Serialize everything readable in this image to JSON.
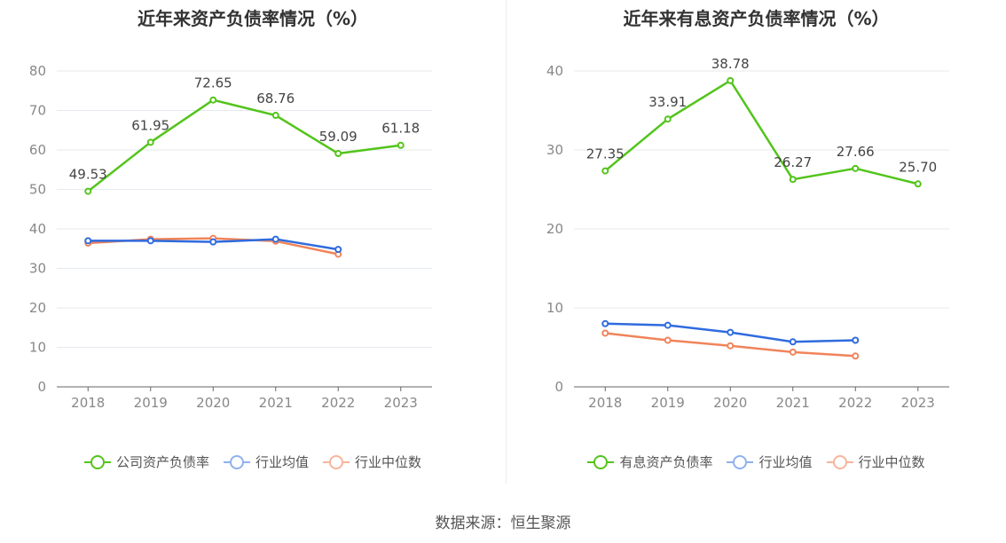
{
  "source": "数据来源：恒生聚源",
  "chart_data": [
    {
      "type": "line",
      "title": "近年来资产负债率情况（%）",
      "x": [
        "2018",
        "2019",
        "2020",
        "2021",
        "2022",
        "2023"
      ],
      "ylim": [
        0,
        80
      ],
      "yticks": [
        0,
        10,
        20,
        30,
        40,
        50,
        60,
        70,
        80
      ],
      "grid": true,
      "legend_position": "bottom",
      "series": [
        {
          "name": "公司资产负债率",
          "color": "#52c41a",
          "labeled": true,
          "values": [
            49.53,
            61.95,
            72.65,
            68.76,
            59.09,
            61.18
          ],
          "labels": [
            "49.53",
            "61.95",
            "72.65",
            "68.76",
            "59.09",
            "61.18"
          ]
        },
        {
          "name": "行业均值",
          "color": "#2f6bde",
          "labeled": false,
          "values": [
            37.0,
            37.0,
            36.7,
            37.4,
            34.8,
            null
          ]
        },
        {
          "name": "行业中位数",
          "color": "#f0845a",
          "labeled": false,
          "values": [
            36.4,
            37.4,
            37.6,
            36.9,
            33.6,
            null
          ]
        }
      ],
      "legend": [
        {
          "name": "公司资产负债率",
          "color": "#52c41a"
        },
        {
          "name": "行业均值",
          "color": "#8fb1ee"
        },
        {
          "name": "行业中位数",
          "color": "#f5b59c"
        }
      ]
    },
    {
      "type": "line",
      "title": "近年来有息资产负债率情况（%）",
      "x": [
        "2018",
        "2019",
        "2020",
        "2021",
        "2022",
        "2023"
      ],
      "ylim": [
        0,
        40
      ],
      "yticks": [
        0,
        10,
        20,
        30,
        40
      ],
      "grid": true,
      "legend_position": "bottom",
      "series": [
        {
          "name": "有息资产负债率",
          "color": "#52c41a",
          "labeled": true,
          "values": [
            27.35,
            33.91,
            38.78,
            26.27,
            27.66,
            25.7
          ],
          "labels": [
            "27.35",
            "33.91",
            "38.78",
            "26.27",
            "27.66",
            "25.70"
          ]
        },
        {
          "name": "行业均值",
          "color": "#2f6bde",
          "labeled": false,
          "values": [
            8.0,
            7.8,
            6.9,
            5.7,
            5.9,
            null
          ]
        },
        {
          "name": "行业中位数",
          "color": "#f0845a",
          "labeled": false,
          "values": [
            6.8,
            5.9,
            5.2,
            4.4,
            3.9,
            null
          ]
        }
      ],
      "legend": [
        {
          "name": "有息资产负债率",
          "color": "#52c41a"
        },
        {
          "name": "行业均值",
          "color": "#8fb1ee"
        },
        {
          "name": "行业中位数",
          "color": "#f5b59c"
        }
      ]
    }
  ]
}
